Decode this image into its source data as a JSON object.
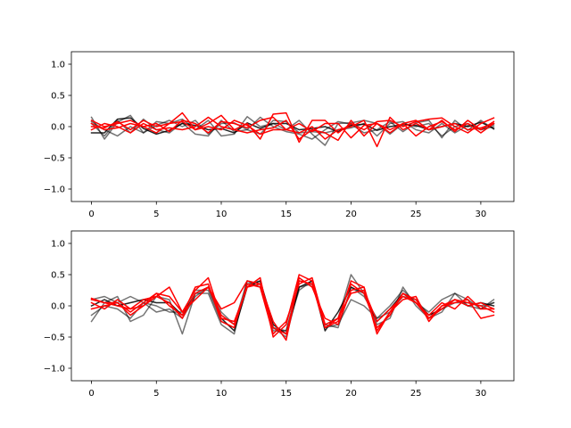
{
  "chart_data": [
    {
      "type": "line",
      "xlim": [
        -1.55,
        32.55
      ],
      "ylim": [
        -1.2,
        1.2
      ],
      "xticks": [
        0,
        5,
        10,
        15,
        20,
        25,
        30
      ],
      "xtick_labels": [
        "0",
        "5",
        "10",
        "15",
        "20",
        "25",
        "30"
      ],
      "yticks": [
        -1.0,
        -0.5,
        0.0,
        0.5,
        1.0
      ],
      "ytick_labels": [
        "−1.0",
        "−0.5",
        "0.0",
        "0.5",
        "1.0"
      ],
      "grid": false,
      "x": [
        0,
        1,
        2,
        3,
        4,
        5,
        6,
        7,
        8,
        9,
        10,
        11,
        12,
        13,
        14,
        15,
        16,
        17,
        18,
        19,
        20,
        21,
        22,
        23,
        24,
        25,
        26,
        27,
        28,
        29,
        30,
        31
      ],
      "series": [
        {
          "color": "#000000",
          "alpha": 0.85,
          "values": [
            -0.1,
            -0.1,
            0.12,
            0.14,
            -0.03,
            -0.12,
            -0.06,
            0.05,
            0.02,
            -0.05,
            -0.03,
            -0.1,
            0.06,
            -0.03,
            0.05,
            0.05,
            -0.05,
            -0.03,
            0.0,
            -0.08,
            0.02,
            0.04,
            -0.06,
            0.0,
            0.03,
            0.02,
            -0.05,
            0.0,
            0.05,
            0.0,
            0.07,
            -0.03
          ]
        },
        {
          "color": "#000000",
          "alpha": 0.55,
          "values": [
            0.15,
            -0.2,
            0.07,
            0.18,
            -0.1,
            0.08,
            0.05,
            0.12,
            -0.05,
            0.1,
            -0.15,
            -0.12,
            0.16,
            0.0,
            0.05,
            -0.05,
            0.1,
            -0.12,
            -0.3,
            0.05,
            0.06,
            0.1,
            0.05,
            -0.12,
            0.05,
            0.0,
            0.05,
            -0.15,
            0.0,
            0.05,
            -0.05,
            0.03
          ]
        },
        {
          "color": "#000000",
          "alpha": 0.55,
          "values": [
            0.08,
            -0.05,
            -0.15,
            0.0,
            -0.1,
            0.02,
            0.1,
            0.0,
            0.1,
            -0.12,
            0.05,
            0.06,
            -0.05,
            0.15,
            0.0,
            -0.08,
            -0.12,
            -0.2,
            -0.05,
            0.08,
            0.04,
            -0.1,
            -0.05,
            0.08,
            -0.08,
            0.06,
            0.1,
            -0.18,
            0.1,
            -0.06,
            0.1,
            -0.04
          ]
        },
        {
          "color": "#000000",
          "alpha": 0.55,
          "values": [
            0.05,
            -0.15,
            0.1,
            -0.1,
            0.12,
            -0.05,
            -0.1,
            0.06,
            -0.12,
            -0.15,
            0.1,
            -0.08,
            -0.05,
            -0.12,
            0.1,
            0.08,
            -0.1,
            -0.08,
            -0.1,
            -0.05,
            -0.02,
            0.05,
            -0.15,
            0.05,
            0.08,
            -0.05,
            -0.1,
            0.05,
            -0.1,
            0.02,
            -0.05,
            0.0
          ]
        },
        {
          "color": "#ff0000",
          "alpha": 1.0,
          "values": [
            0.05,
            -0.05,
            -0.02,
            0.05,
            0.0,
            -0.1,
            0.05,
            0.22,
            -0.05,
            0.05,
            0.18,
            -0.05,
            0.05,
            -0.2,
            0.2,
            0.22,
            -0.25,
            0.1,
            0.1,
            -0.1,
            0.05,
            -0.05,
            0.08,
            0.1,
            0.0,
            0.08,
            0.12,
            0.14,
            0.0,
            -0.1,
            0.05,
            0.14
          ]
        },
        {
          "color": "#ff0000",
          "alpha": 1.0,
          "values": [
            0.1,
            0.0,
            0.05,
            0.1,
            0.0,
            0.05,
            -0.08,
            0.1,
            0.05,
            -0.1,
            0.08,
            0.05,
            -0.02,
            0.1,
            0.15,
            -0.05,
            -0.1,
            0.0,
            -0.2,
            -0.05,
            0.0,
            0.1,
            -0.32,
            0.15,
            -0.05,
            0.05,
            -0.05,
            0.1,
            -0.08,
            0.1,
            -0.05,
            0.08
          ]
        },
        {
          "color": "#ff0000",
          "alpha": 1.0,
          "values": [
            -0.05,
            0.05,
            0.0,
            -0.1,
            0.05,
            -0.05,
            -0.02,
            -0.05,
            0.0,
            0.15,
            0.0,
            -0.05,
            -0.1,
            -0.05,
            -0.02,
            0.1,
            -0.2,
            -0.05,
            -0.1,
            -0.22,
            0.1,
            -0.15,
            0.05,
            -0.05,
            0.05,
            -0.15,
            0.0,
            0.08,
            -0.05,
            0.05,
            -0.1,
            0.05
          ]
        },
        {
          "color": "#ff0000",
          "alpha": 1.0,
          "values": [
            0.0,
            -0.02,
            0.08,
            -0.05,
            0.1,
            0.0,
            0.05,
            0.08,
            -0.05,
            0.0,
            -0.05,
            0.1,
            0.02,
            -0.12,
            -0.05,
            -0.05,
            0.05,
            -0.08,
            0.05,
            0.05,
            -0.18,
            0.02,
            0.05,
            -0.1,
            0.05,
            0.1,
            -0.05,
            0.0,
            0.05,
            -0.05,
            -0.02,
            0.05
          ]
        }
      ]
    },
    {
      "type": "line",
      "xlim": [
        -1.55,
        32.55
      ],
      "ylim": [
        -1.2,
        1.2
      ],
      "xticks": [
        0,
        5,
        10,
        15,
        20,
        25,
        30
      ],
      "xtick_labels": [
        "0",
        "5",
        "10",
        "15",
        "20",
        "25",
        "30"
      ],
      "yticks": [
        -1.0,
        -0.5,
        0.0,
        0.5,
        1.0
      ],
      "ytick_labels": [
        "−1.0",
        "−0.5",
        "0.0",
        "0.5",
        "1.0"
      ],
      "grid": false,
      "x": [
        0,
        1,
        2,
        3,
        4,
        5,
        6,
        7,
        8,
        9,
        10,
        11,
        12,
        13,
        14,
        15,
        16,
        17,
        18,
        19,
        20,
        21,
        22,
        23,
        24,
        25,
        26,
        27,
        28,
        29,
        30,
        31
      ],
      "series": [
        {
          "color": "#000000",
          "alpha": 0.85,
          "values": [
            0.0,
            0.1,
            0.0,
            0.05,
            0.1,
            0.05,
            0.05,
            -0.15,
            0.2,
            0.3,
            -0.2,
            -0.4,
            0.3,
            0.4,
            -0.3,
            -0.45,
            0.3,
            0.4,
            -0.4,
            -0.1,
            0.3,
            0.2,
            -0.25,
            -0.05,
            0.2,
            0.05,
            -0.15,
            -0.05,
            0.1,
            0.0,
            0.05,
            0.0
          ]
        },
        {
          "color": "#000000",
          "alpha": 0.55,
          "values": [
            -0.25,
            0.05,
            0.15,
            -0.25,
            -0.15,
            0.15,
            0.1,
            -0.45,
            0.2,
            0.2,
            -0.3,
            -0.45,
            0.4,
            0.3,
            -0.35,
            -0.5,
            0.3,
            0.35,
            -0.3,
            -0.2,
            0.5,
            0.2,
            -0.3,
            -0.2,
            0.3,
            0.0,
            -0.2,
            -0.1,
            0.2,
            0.0,
            -0.05,
            0.1
          ]
        },
        {
          "color": "#000000",
          "alpha": 0.55,
          "values": [
            0.1,
            0.15,
            0.05,
            0.15,
            0.05,
            -0.1,
            -0.05,
            -0.2,
            0.15,
            0.3,
            -0.1,
            -0.3,
            0.4,
            0.35,
            -0.4,
            -0.4,
            0.25,
            0.4,
            -0.35,
            -0.3,
            0.1,
            0.0,
            -0.2,
            0.0,
            0.25,
            0.05,
            -0.1,
            0.1,
            0.2,
            0.1,
            -0.05,
            0.05
          ]
        },
        {
          "color": "#000000",
          "alpha": 0.55,
          "values": [
            -0.15,
            0.0,
            -0.05,
            -0.2,
            0.05,
            0.0,
            -0.1,
            -0.1,
            0.25,
            0.25,
            -0.25,
            -0.35,
            0.35,
            0.4,
            -0.35,
            -0.4,
            0.4,
            0.35,
            -0.3,
            -0.35,
            0.3,
            0.15,
            -0.2,
            -0.1,
            0.15,
            0.1,
            -0.15,
            -0.05,
            0.05,
            0.05,
            0.0,
            0.05
          ]
        },
        {
          "color": "#ff0000",
          "alpha": 1.0,
          "values": [
            0.12,
            0.05,
            0.05,
            -0.15,
            0.0,
            0.2,
            0.15,
            -0.1,
            0.25,
            0.45,
            -0.2,
            -0.25,
            0.3,
            0.45,
            -0.5,
            -0.3,
            0.5,
            0.4,
            -0.35,
            -0.25,
            0.4,
            0.3,
            -0.4,
            -0.1,
            0.2,
            0.1,
            -0.2,
            0.0,
            0.1,
            0.05,
            0.0,
            -0.1
          ]
        },
        {
          "color": "#ff0000",
          "alpha": 1.0,
          "values": [
            0.05,
            -0.05,
            0.1,
            -0.05,
            0.1,
            0.15,
            0.3,
            -0.1,
            0.1,
            0.3,
            -0.05,
            0.05,
            0.4,
            0.35,
            -0.25,
            -0.55,
            0.45,
            0.3,
            -0.2,
            -0.3,
            0.25,
            0.3,
            -0.45,
            -0.1,
            0.1,
            0.15,
            -0.25,
            0.0,
            0.05,
            0.1,
            -0.2,
            -0.15
          ]
        },
        {
          "color": "#ff0000",
          "alpha": 1.0,
          "values": [
            -0.05,
            0.0,
            0.05,
            -0.1,
            0.05,
            0.2,
            0.0,
            -0.15,
            0.3,
            0.35,
            -0.25,
            -0.35,
            0.35,
            0.3,
            -0.45,
            -0.25,
            0.35,
            0.45,
            -0.3,
            -0.2,
            0.35,
            0.2,
            -0.35,
            -0.15,
            0.2,
            0.05,
            -0.15,
            0.05,
            -0.05,
            0.15,
            -0.05,
            -0.05
          ]
        },
        {
          "color": "#ff0000",
          "alpha": 1.0,
          "values": [
            0.1,
            0.05,
            0.0,
            -0.05,
            0.0,
            0.15,
            0.05,
            -0.2,
            0.2,
            0.3,
            -0.15,
            -0.3,
            0.3,
            0.35,
            -0.35,
            -0.45,
            0.4,
            0.35,
            -0.35,
            -0.2,
            0.2,
            0.25,
            -0.25,
            -0.05,
            0.15,
            0.05,
            -0.2,
            -0.05,
            0.1,
            0.0,
            0.05,
            -0.05
          ]
        }
      ]
    }
  ]
}
